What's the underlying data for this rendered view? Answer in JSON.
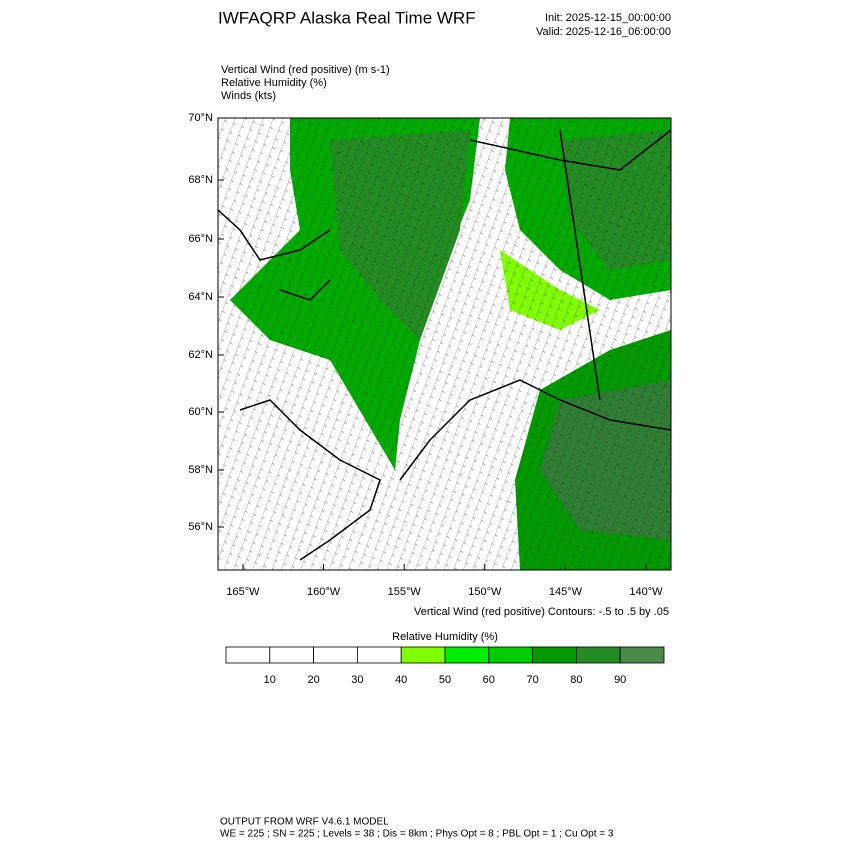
{
  "header": {
    "title": "IWFAQRP Alaska Real Time WRF",
    "init": "Init: 2025-12-15_00:00:00",
    "valid": "Valid: 2025-12-16_06:00:00"
  },
  "fields": [
    "Vertical Wind (red positive)   (m s-1)",
    "Relative Humidity   (%)",
    "Winds   (kts)"
  ],
  "map": {
    "lat_labels": [
      "70°N",
      "68°N",
      "66°N",
      "64°N",
      "62°N",
      "60°N",
      "58°N",
      "56°N"
    ],
    "lon_labels": [
      "165°W",
      "160°W",
      "155°W",
      "150°W",
      "145°W",
      "140°W"
    ],
    "contour_note": "Vertical Wind (red positive) Contours: -.5 to .5 by .05"
  },
  "colorbar": {
    "title": "Relative Humidity  (%)",
    "colors": [
      "#ffffff",
      "#ffffff",
      "#ffffff",
      "#ffffff",
      "#80ff00",
      "#00ee00",
      "#00cc00",
      "#009900",
      "#228b22",
      "#4a8b4a"
    ],
    "labels": [
      10,
      20,
      30,
      40,
      50,
      60,
      70,
      80,
      90
    ]
  },
  "footer": [
    "OUTPUT FROM WRF V4.6.1 MODEL",
    "WE = 225 ; SN = 225 ; Levels = 38 ; Dis = 8km ; Phys Opt = 8 ; PBL Opt = 1 ; Cu Opt = 3"
  ]
}
